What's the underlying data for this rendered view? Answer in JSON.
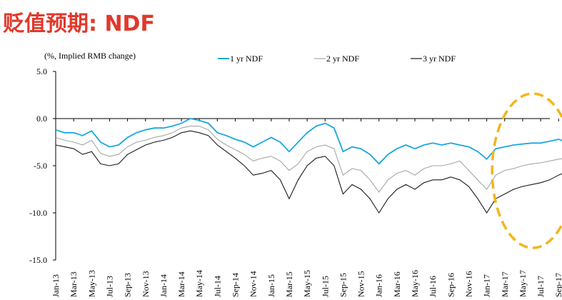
{
  "title": "贬值预期: NDF",
  "chart_data": {
    "type": "line",
    "ylabel": "(%, Implied RMB change)",
    "ylim": [
      -15,
      5
    ],
    "yticks": [
      "5.0",
      "0.0",
      "-5.0",
      "-10.0",
      "-15.0"
    ],
    "ytick_values": [
      5,
      0,
      -5,
      -10,
      -15
    ],
    "xticks": [
      "Jan-13",
      "Mar-13",
      "May-13",
      "Jul-13",
      "Sep-13",
      "Nov-13",
      "Jan-14",
      "Mar-14",
      "May-14",
      "Jul-14",
      "Sep-14",
      "Nov-14",
      "Jan-15",
      "Mar-15",
      "May-15",
      "Jul-15",
      "Sep-15",
      "Nov-15",
      "Jan-16",
      "Mar-16",
      "May-16",
      "Jul-16",
      "Sep-16",
      "Nov-16",
      "Jan-17",
      "Mar-17",
      "May-17",
      "Jul-17",
      "Sep-17"
    ],
    "x": [
      "2013-01",
      "2013-02",
      "2013-03",
      "2013-04",
      "2013-05",
      "2013-06",
      "2013-07",
      "2013-08",
      "2013-09",
      "2013-10",
      "2013-11",
      "2013-12",
      "2014-01",
      "2014-02",
      "2014-03",
      "2014-04",
      "2014-05",
      "2014-06",
      "2014-07",
      "2014-08",
      "2014-09",
      "2014-10",
      "2014-11",
      "2014-12",
      "2015-01",
      "2015-02",
      "2015-03",
      "2015-04",
      "2015-05",
      "2015-06",
      "2015-07",
      "2015-08",
      "2015-09",
      "2015-10",
      "2015-11",
      "2015-12",
      "2016-01",
      "2016-02",
      "2016-03",
      "2016-04",
      "2016-05",
      "2016-06",
      "2016-07",
      "2016-08",
      "2016-09",
      "2016-10",
      "2016-11",
      "2016-12",
      "2017-01",
      "2017-02",
      "2017-03",
      "2017-04",
      "2017-05",
      "2017-06",
      "2017-07",
      "2017-08",
      "2017-09",
      "2017-10"
    ],
    "series": [
      {
        "name": "1 yr NDF",
        "color": "#1aa7e0",
        "values": [
          -1.2,
          -1.5,
          -1.5,
          -1.8,
          -1.3,
          -2.5,
          -3.0,
          -2.8,
          -2.0,
          -1.5,
          -1.2,
          -1.0,
          -1.0,
          -0.8,
          -0.5,
          0.0,
          -0.2,
          -0.5,
          -1.5,
          -1.8,
          -2.2,
          -2.5,
          -3.0,
          -2.5,
          -2.0,
          -2.5,
          -3.5,
          -2.5,
          -1.5,
          -0.8,
          -0.5,
          -1.0,
          -3.5,
          -3.0,
          -3.2,
          -3.8,
          -4.8,
          -3.8,
          -3.2,
          -2.8,
          -3.2,
          -2.8,
          -2.6,
          -2.8,
          -2.6,
          -2.8,
          -3.0,
          -3.5,
          -4.3,
          -3.2,
          -3.0,
          -2.8,
          -2.7,
          -2.6,
          -2.6,
          -2.4,
          -2.2,
          -2.5
        ]
      },
      {
        "name": "2 yr NDF",
        "color": "#a6a6a6",
        "values": [
          -2.0,
          -2.3,
          -2.5,
          -2.8,
          -2.3,
          -3.7,
          -4.0,
          -3.8,
          -3.0,
          -2.5,
          -2.3,
          -2.0,
          -1.8,
          -1.5,
          -1.0,
          -0.8,
          -0.8,
          -1.2,
          -2.2,
          -2.8,
          -3.3,
          -3.8,
          -4.5,
          -4.2,
          -4.0,
          -4.5,
          -5.5,
          -4.8,
          -3.5,
          -3.0,
          -2.8,
          -3.2,
          -6.0,
          -5.3,
          -5.5,
          -6.5,
          -7.8,
          -6.5,
          -5.8,
          -5.5,
          -6.0,
          -5.3,
          -5.0,
          -5.0,
          -4.8,
          -4.5,
          -5.5,
          -6.5,
          -7.5,
          -6.0,
          -5.5,
          -5.3,
          -5.0,
          -4.8,
          -4.7,
          -4.5,
          -4.3,
          -4.2
        ]
      },
      {
        "name": "3 yr NDF",
        "color": "#1a1a1a",
        "values": [
          -2.8,
          -3.0,
          -3.2,
          -3.8,
          -3.5,
          -4.8,
          -5.0,
          -4.8,
          -3.8,
          -3.3,
          -2.8,
          -2.5,
          -2.3,
          -2.0,
          -1.5,
          -1.3,
          -1.5,
          -1.8,
          -2.8,
          -3.5,
          -4.2,
          -5.0,
          -6.0,
          -5.8,
          -5.5,
          -6.5,
          -8.5,
          -6.5,
          -5.0,
          -4.2,
          -4.0,
          -5.0,
          -8.0,
          -7.0,
          -7.5,
          -8.5,
          -10.0,
          -8.5,
          -7.5,
          -7.0,
          -7.5,
          -6.8,
          -6.5,
          -6.5,
          -6.2,
          -6.5,
          -7.2,
          -8.5,
          -10.0,
          -8.5,
          -8.0,
          -7.5,
          -7.2,
          -7.0,
          -6.8,
          -6.5,
          -6.0,
          -5.6
        ]
      }
    ],
    "legend_placement": "top",
    "grid": false,
    "annotation": {
      "shape": "dashed-ellipse",
      "color": "#f2b51c",
      "covers": [
        "2017-01",
        "2017-10"
      ]
    }
  }
}
